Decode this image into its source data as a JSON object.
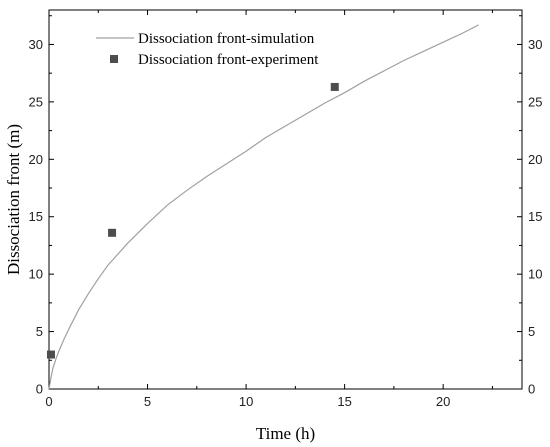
{
  "chart_data": {
    "type": "line",
    "xlabel": "Time (h)",
    "ylabel": "Dissociation front (m)",
    "xlim": [
      0,
      24
    ],
    "ylim": [
      0,
      33
    ],
    "x_ticks": [
      "0",
      "5",
      "10",
      "15",
      "20"
    ],
    "y_ticks": [
      "0",
      "5",
      "10",
      "15",
      "20",
      "25",
      "30"
    ],
    "grid": false,
    "legend_position": "top-left",
    "series": [
      {
        "name": "Dissociation front-simulation",
        "kind": "line",
        "color": "#a0a0a0",
        "x": [
          0,
          0.1,
          0.2,
          0.35,
          0.5,
          0.75,
          1,
          1.5,
          2,
          2.5,
          3,
          4,
          5,
          6,
          7,
          8,
          9,
          10,
          10.5,
          11,
          12,
          13,
          14,
          15,
          16,
          17,
          18,
          19,
          20,
          21,
          21.8
        ],
        "y": [
          0,
          1.0,
          1.8,
          2.6,
          3.3,
          4.3,
          5.2,
          6.9,
          8.3,
          9.6,
          10.8,
          12.7,
          14.4,
          16.0,
          17.3,
          18.5,
          19.6,
          20.7,
          21.3,
          21.9,
          22.9,
          23.9,
          24.9,
          25.8,
          26.8,
          27.7,
          28.6,
          29.4,
          30.2,
          31.0,
          31.7
        ]
      },
      {
        "name": "Dissociation front-experiment",
        "kind": "scatter",
        "color": "#4d4d4d",
        "x": [
          0.1,
          3.2,
          14.5
        ],
        "y": [
          3.0,
          13.6,
          26.3
        ]
      }
    ]
  }
}
